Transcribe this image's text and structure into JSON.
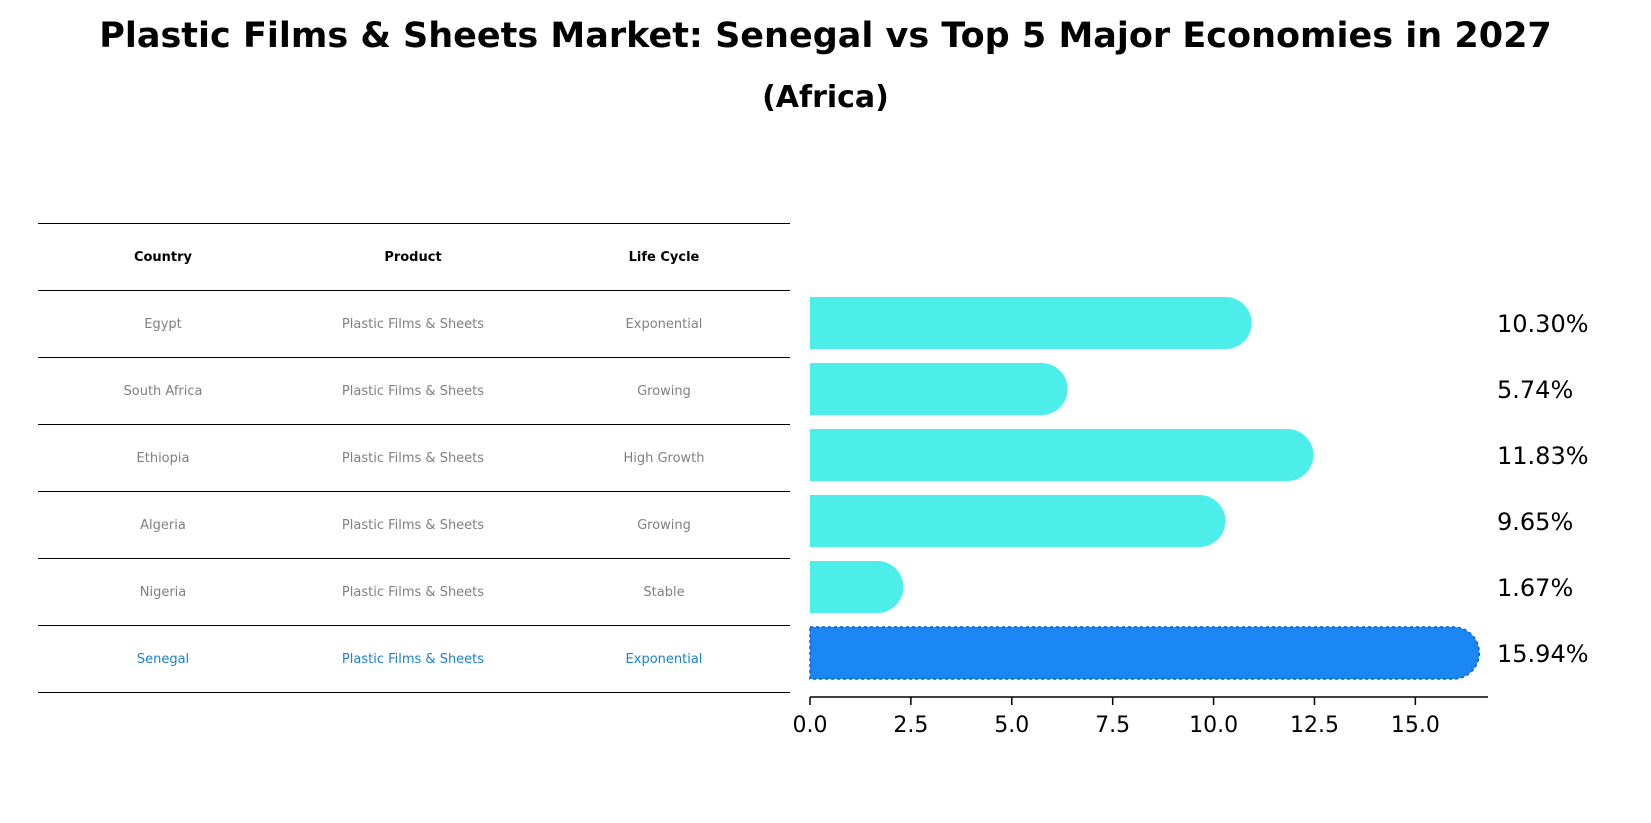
{
  "chart_data": {
    "type": "bar",
    "orientation": "horizontal",
    "title": "Plastic Films & Sheets Market: Senegal vs Top 5 Major Economies in 2027",
    "subtitle": "(Africa)",
    "categories": [
      "Egypt",
      "South Africa",
      "Ethiopia",
      "Algeria",
      "Nigeria",
      "Senegal"
    ],
    "values": [
      10.3,
      5.74,
      11.83,
      9.65,
      1.67,
      15.94
    ],
    "value_labels": [
      "10.30%",
      "5.74%",
      "11.83%",
      "9.65%",
      "1.67%",
      "15.94%"
    ],
    "xlim": [
      0,
      16.8
    ],
    "xticks": [
      0.0,
      2.5,
      5.0,
      7.5,
      10.0,
      12.5,
      15.0
    ],
    "xtick_labels": [
      "0.0",
      "2.5",
      "5.0",
      "7.5",
      "10.0",
      "12.5",
      "15.0"
    ],
    "highlight": "Senegal",
    "colors": {
      "default": "#4deeea",
      "highlight": "#1a87f5"
    }
  },
  "table": {
    "headers": [
      "Country",
      "Product",
      "Life Cycle"
    ],
    "rows": [
      [
        "Egypt",
        "Plastic Films & Sheets",
        "Exponential"
      ],
      [
        "South Africa",
        "Plastic Films & Sheets",
        "Growing"
      ],
      [
        "Ethiopia",
        "Plastic Films & Sheets",
        "High Growth"
      ],
      [
        "Algeria",
        "Plastic Films & Sheets",
        "Growing"
      ],
      [
        "Nigeria",
        "Plastic Films & Sheets",
        "Stable"
      ],
      [
        "Senegal",
        "Plastic Films & Sheets",
        "Exponential"
      ]
    ]
  }
}
